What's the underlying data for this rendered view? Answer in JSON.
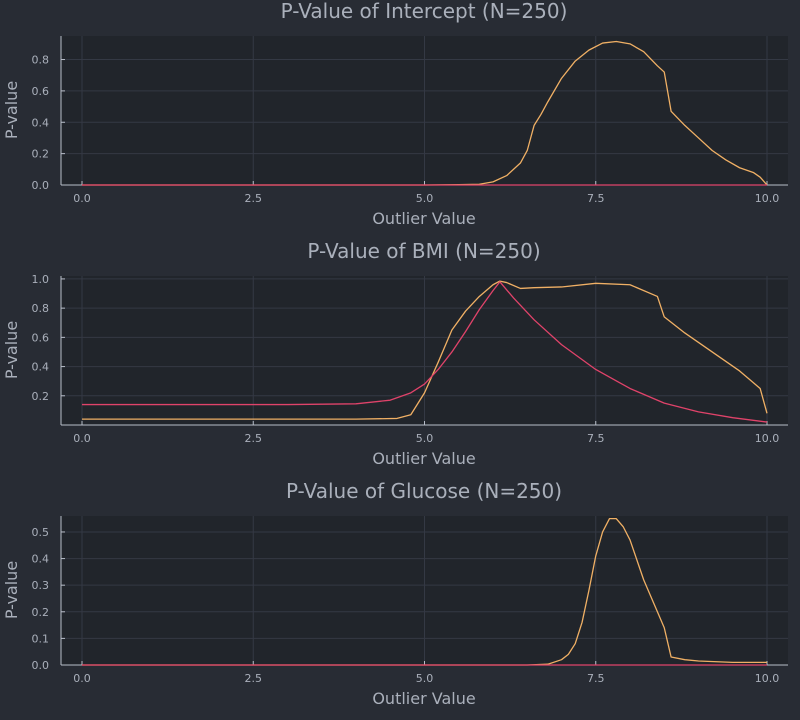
{
  "colors": {
    "background": "#282c34",
    "plot_background": "#21252b",
    "grid": "#343944",
    "axis": "#b8bec9",
    "text": "#aab0bb",
    "series_orange": "#f0b065",
    "series_red": "#e0436a"
  },
  "chart_data": [
    {
      "type": "line",
      "title": "P-Value of Intercept (N=250)",
      "xlabel": "Outlier Value",
      "ylabel": "P-value",
      "xlim": [
        0,
        10
      ],
      "ylim": [
        0,
        0.95
      ],
      "xticks": [
        "0.0",
        "2.5",
        "5.0",
        "7.5",
        "10.0"
      ],
      "yticks": [
        "0.0",
        "0.2",
        "0.4",
        "0.6",
        "0.8"
      ],
      "grid": true,
      "legend": "none",
      "series": [
        {
          "color": "#f0b065",
          "x": [
            0,
            5.0,
            5.5,
            5.8,
            6.0,
            6.2,
            6.4,
            6.5,
            6.6,
            6.7,
            6.8,
            7.0,
            7.2,
            7.4,
            7.6,
            7.8,
            8.0,
            8.2,
            8.4,
            8.5,
            8.6,
            8.8,
            9.0,
            9.2,
            9.4,
            9.6,
            9.8,
            9.9,
            10.0
          ],
          "y": [
            0.0,
            0.0,
            0.002,
            0.005,
            0.02,
            0.06,
            0.14,
            0.22,
            0.38,
            0.45,
            0.53,
            0.68,
            0.79,
            0.86,
            0.905,
            0.915,
            0.9,
            0.85,
            0.76,
            0.72,
            0.47,
            0.38,
            0.3,
            0.22,
            0.16,
            0.11,
            0.08,
            0.05,
            0.0
          ]
        },
        {
          "color": "#e0436a",
          "x": [
            0,
            10.0
          ],
          "y": [
            0.0,
            0.0
          ]
        }
      ]
    },
    {
      "type": "line",
      "title": "P-Value of BMI (N=250)",
      "xlabel": "Outlier Value",
      "ylabel": "P-value",
      "xlim": [
        0,
        10
      ],
      "ylim": [
        0,
        1.02
      ],
      "xticks": [
        "0.0",
        "2.5",
        "5.0",
        "7.5",
        "10.0"
      ],
      "yticks": [
        "0.2",
        "0.4",
        "0.6",
        "0.8",
        "1.0"
      ],
      "grid": true,
      "legend": "none",
      "series": [
        {
          "color": "#f0b065",
          "x": [
            0,
            4.0,
            4.6,
            4.8,
            5.0,
            5.2,
            5.4,
            5.6,
            5.8,
            6.0,
            6.1,
            6.2,
            6.4,
            6.6,
            7.0,
            7.5,
            8.0,
            8.4,
            8.5,
            8.8,
            9.2,
            9.6,
            9.9,
            10.0
          ],
          "y": [
            0.04,
            0.04,
            0.045,
            0.07,
            0.22,
            0.43,
            0.65,
            0.78,
            0.88,
            0.96,
            0.985,
            0.975,
            0.935,
            0.94,
            0.945,
            0.97,
            0.96,
            0.88,
            0.74,
            0.63,
            0.5,
            0.37,
            0.25,
            0.08
          ]
        },
        {
          "color": "#e0436a",
          "x": [
            0,
            3.0,
            4.0,
            4.5,
            4.8,
            5.0,
            5.2,
            5.4,
            5.6,
            5.8,
            6.0,
            6.1,
            6.3,
            6.6,
            7.0,
            7.5,
            8.0,
            8.5,
            9.0,
            9.5,
            10.0
          ],
          "y": [
            0.14,
            0.14,
            0.145,
            0.17,
            0.22,
            0.28,
            0.38,
            0.5,
            0.64,
            0.79,
            0.92,
            0.98,
            0.87,
            0.72,
            0.55,
            0.38,
            0.25,
            0.15,
            0.09,
            0.05,
            0.02
          ]
        }
      ]
    },
    {
      "type": "line",
      "title": "P-Value of Glucose (N=250)",
      "xlabel": "Outlier Value",
      "ylabel": "P-value",
      "xlim": [
        0,
        10
      ],
      "ylim": [
        0,
        0.56
      ],
      "xticks": [
        "0.0",
        "2.5",
        "5.0",
        "7.5",
        "10.0"
      ],
      "yticks": [
        "0.0",
        "0.1",
        "0.2",
        "0.3",
        "0.4",
        "0.5"
      ],
      "grid": true,
      "legend": "none",
      "series": [
        {
          "color": "#f0b065",
          "x": [
            0,
            6.5,
            6.8,
            7.0,
            7.1,
            7.2,
            7.3,
            7.4,
            7.5,
            7.6,
            7.7,
            7.8,
            7.9,
            8.0,
            8.2,
            8.4,
            8.5,
            8.6,
            8.8,
            9.0,
            9.5,
            10.0
          ],
          "y": [
            0.0,
            0.0,
            0.003,
            0.02,
            0.04,
            0.08,
            0.16,
            0.28,
            0.41,
            0.5,
            0.55,
            0.55,
            0.52,
            0.47,
            0.32,
            0.2,
            0.14,
            0.03,
            0.02,
            0.015,
            0.01,
            0.01
          ]
        },
        {
          "color": "#e0436a",
          "x": [
            0,
            10.0
          ],
          "y": [
            0.0,
            0.0
          ]
        }
      ]
    }
  ]
}
